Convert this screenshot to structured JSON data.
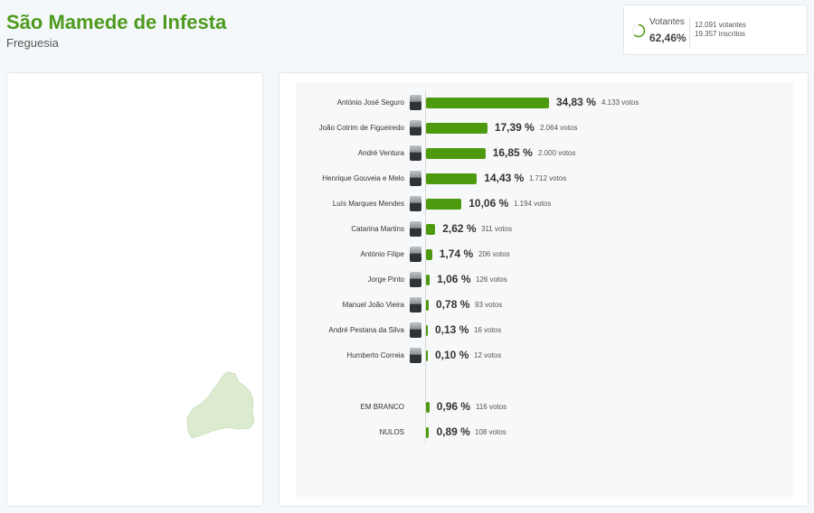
{
  "header": {
    "title": "São Mamede de Infesta",
    "subtitle": "Freguesia"
  },
  "turnout": {
    "label": "Votantes",
    "percent": "62,46%",
    "percent_value": 62.46,
    "voters": "12.091 votantes",
    "registered": "19.357 inscritos"
  },
  "colors": {
    "accent": "#4e9a0e",
    "map": "#dcebd0"
  },
  "results": [
    {
      "name": "António José Seguro",
      "pct": "34,83 %",
      "value": 34.83,
      "votes": "4.133 votos"
    },
    {
      "name": "João Cotrim de Figueiredo",
      "pct": "17,39 %",
      "value": 17.39,
      "votes": "2.064 votos"
    },
    {
      "name": "André Ventura",
      "pct": "16,85 %",
      "value": 16.85,
      "votes": "2.000 votos"
    },
    {
      "name": "Henrique Gouveia e Melo",
      "pct": "14,43 %",
      "value": 14.43,
      "votes": "1.712 votos"
    },
    {
      "name": "Luís Marques Mendes",
      "pct": "10,06 %",
      "value": 10.06,
      "votes": "1.194 votos"
    },
    {
      "name": "Catarina Martins",
      "pct": "2,62 %",
      "value": 2.62,
      "votes": "311 votos"
    },
    {
      "name": "António Filipe",
      "pct": "1,74 %",
      "value": 1.74,
      "votes": "206 votos"
    },
    {
      "name": "Jorge Pinto",
      "pct": "1,06 %",
      "value": 1.06,
      "votes": "126 votos"
    },
    {
      "name": "Manuel João Vieira",
      "pct": "0,78 %",
      "value": 0.78,
      "votes": "93 votos"
    },
    {
      "name": "André Pestana da Silva",
      "pct": "0,13 %",
      "value": 0.13,
      "votes": "16 votos"
    },
    {
      "name": "Humberto Correia",
      "pct": "0,10 %",
      "value": 0.1,
      "votes": "12 votos"
    }
  ],
  "other": [
    {
      "name": "EM BRANCO",
      "pct": "0,96 %",
      "value": 0.96,
      "votes": "116 votos"
    },
    {
      "name": "NULOS",
      "pct": "0,89 %",
      "value": 0.89,
      "votes": "108 votos"
    }
  ]
}
